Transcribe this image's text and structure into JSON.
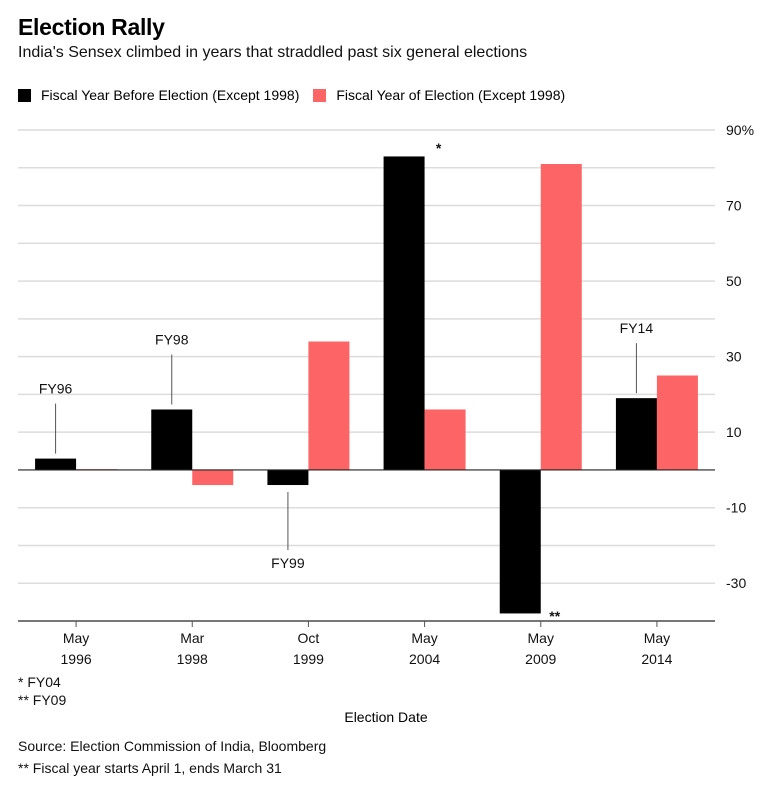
{
  "header": {
    "title": "Election Rally",
    "subtitle": "India's Sensex climbed in years that straddled past six general elections"
  },
  "legend": [
    {
      "label": "Fiscal Year Before Election (Except 1998)",
      "color": "#000000"
    },
    {
      "label": "Fiscal Year of Election (Except 1998)",
      "color": "#fd6465"
    }
  ],
  "chart_data": {
    "type": "bar",
    "title": "Election Rally",
    "subtitle": "India's Sensex climbed in years that straddled past six general elections",
    "xlabel": "Election Date",
    "ylabel": "",
    "categories": [
      "May 1996",
      "Mar 1998",
      "Oct 1999",
      "May 2004",
      "May 2009",
      "May 2014"
    ],
    "category_lines": [
      [
        "May",
        "1996"
      ],
      [
        "Mar",
        "1998"
      ],
      [
        "Oct",
        "1999"
      ],
      [
        "May",
        "2004"
      ],
      [
        "May",
        "2009"
      ],
      [
        "May",
        "2014"
      ]
    ],
    "series": [
      {
        "name": "Fiscal Year Before Election (Except 1998)",
        "color": "#000000",
        "values": [
          3,
          16,
          -4,
          83,
          -38,
          19
        ]
      },
      {
        "name": "Fiscal Year of Election (Except 1998)",
        "color": "#fd6465",
        "values": [
          0.2,
          -4,
          34,
          16,
          81,
          25
        ]
      }
    ],
    "ylim": [
      -40,
      90
    ],
    "yticks": [
      90,
      70,
      50,
      30,
      10,
      -10,
      -30
    ],
    "ytick_labels": [
      "90%",
      "70",
      "50",
      "30",
      "10",
      "-10",
      "-30"
    ],
    "grid_step": 10,
    "grid": true,
    "y_axis_side": "right",
    "legend_position": "top-left",
    "annotations": [
      {
        "text": "FY96",
        "category": 0,
        "series": 0,
        "side": "above"
      },
      {
        "text": "FY98",
        "category": 1,
        "series": 0,
        "side": "above"
      },
      {
        "text": "FY99",
        "category": 2,
        "series": 0,
        "side": "below"
      },
      {
        "text": "FY14",
        "category": 5,
        "series": 0,
        "side": "above"
      }
    ],
    "markers": [
      {
        "text": "*",
        "category": 3,
        "value": 86
      },
      {
        "text": "**",
        "category": 4,
        "value": -40
      }
    ]
  },
  "footnotes": {
    "note1": "* FY04",
    "note2": "** FY09",
    "source": "Source: Election Commission of India, Bloomberg",
    "note3": "** Fiscal year starts April 1, ends March 31"
  }
}
